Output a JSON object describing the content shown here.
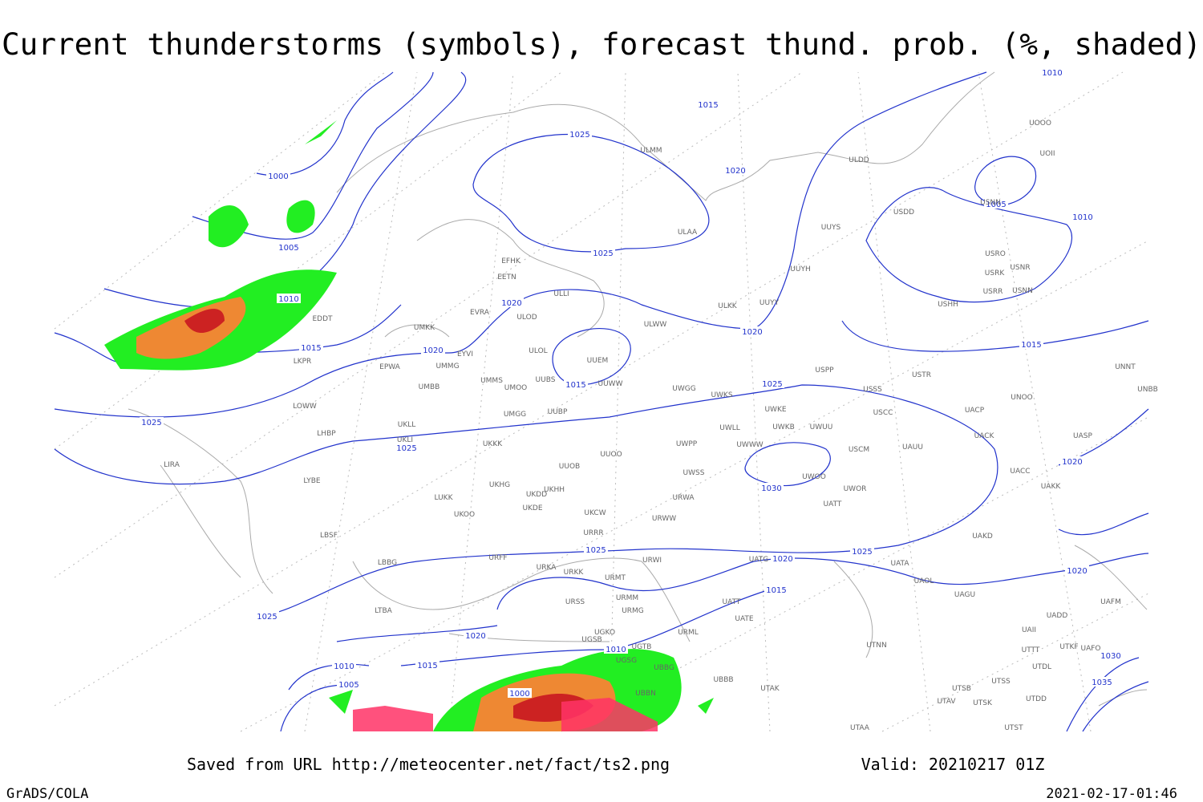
{
  "header": {
    "title": "Current thunderstorms (symbols), forecast thund. prob. (%, shaded)"
  },
  "isobars": [
    "1000",
    "1005",
    "1010",
    "1015",
    "1020",
    "1025",
    "1025",
    "1020",
    "1025",
    "1025",
    "1015",
    "1020",
    "1020",
    "1015",
    "1025",
    "1030",
    "1025",
    "1020",
    "1015",
    "1025",
    "1020",
    "1030",
    "1035",
    "1015",
    "1010",
    "1005",
    "1010",
    "1020",
    "1025",
    "1020",
    "1015",
    "1010",
    "1005",
    "1010",
    "1000"
  ],
  "stations": [
    "EFHK",
    "EETN",
    "EVRA",
    "ULOD",
    "ULLI",
    "ULAA",
    "ULMM",
    "ULDD",
    "UUYS",
    "UUYH",
    "ULKK",
    "UUYY",
    "ULWW",
    "UUEM",
    "ULOL",
    "UMKK",
    "EYVI",
    "UMMG",
    "EPWA",
    "UMMS",
    "UMOO",
    "UUBS",
    "UUWW",
    "UMBB",
    "UWGG",
    "UWKS",
    "USPP",
    "USTR",
    "USSS",
    "UNOO",
    "UNNT",
    "UNBB",
    "EDDT",
    "LKPR",
    "LOWW",
    "LHBP",
    "UKLL",
    "UKLI",
    "UMGG",
    "UUBP",
    "USCC",
    "UACP",
    "UWKE",
    "UWKB",
    "UWUU",
    "UWLL",
    "UKKK",
    "UWPP",
    "UWWW",
    "USCM",
    "UAUU",
    "UACK",
    "UASP",
    "LIRA",
    "UUOO",
    "UUOB",
    "LYBE",
    "UKHG",
    "UKDD",
    "UKHH",
    "UWSS",
    "UWOO",
    "UACC",
    "UAKK",
    "LUKK",
    "UKOO",
    "UKDE",
    "URWA",
    "UATT",
    "UWOR",
    "UKCW",
    "URWW",
    "LBSF",
    "URRR",
    "UAKD",
    "LBBG",
    "URFF",
    "URKA",
    "URKK",
    "URWI",
    "UATG",
    "UATA",
    "UAOL",
    "URMT",
    "URMM",
    "URSS",
    "UATT",
    "UATE",
    "UAGU",
    "UAFM",
    "UADD",
    "LTBA",
    "URMG",
    "URML",
    "UGKO",
    "UGSB",
    "UGTB",
    "UAII",
    "UTTT",
    "UTKF",
    "UAFO",
    "UTNN",
    "UGSG",
    "UBBG",
    "UTDL",
    "UBBB",
    "UTAK",
    "UBBN",
    "UTSB",
    "UTSS",
    "UTAV",
    "UTSK",
    "UTDD",
    "UTAA",
    "UTST",
    "UOOO",
    "UOII",
    "USDD",
    "USNN",
    "USRO",
    "USRK",
    "USNR",
    "USRR",
    "USNN",
    "USHH"
  ],
  "footer": {
    "saved": "Saved from URL http://meteocenter.net/fact/ts2.png",
    "valid": "Valid: 20210217 01Z",
    "left": "GrADS/COLA",
    "right": "2021-02-17-01:46"
  }
}
